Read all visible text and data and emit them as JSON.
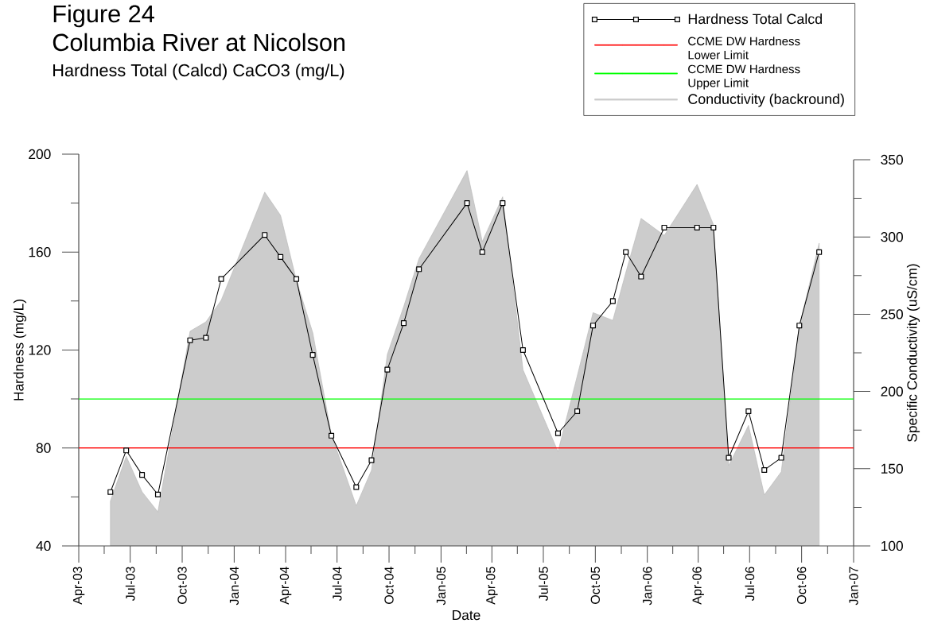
{
  "chart_data": {
    "type": "line",
    "annotations": [
      "Figure 24"
    ],
    "title": "Columbia River at Nicolson",
    "subtitle": "Hardness Total (Calcd) CaCO3 (mg/L)",
    "xlabel": "Date",
    "ylabel": "Hardness (mg/L)",
    "y2label": "Specific Conductivity (uS/cm)",
    "x": [
      "2003-05-27",
      "2003-06-24",
      "2003-07-22",
      "2003-08-19",
      "2003-10-15",
      "2003-11-12",
      "2003-12-09",
      "2004-02-24",
      "2004-03-23",
      "2004-04-20",
      "2004-05-19",
      "2004-06-21",
      "2004-08-04",
      "2004-08-31",
      "2004-09-28",
      "2004-10-27",
      "2004-11-23",
      "2005-02-16",
      "2005-03-15",
      "2005-04-20",
      "2005-05-26",
      "2005-07-27",
      "2005-08-30",
      "2005-09-27",
      "2005-11-01",
      "2005-11-24",
      "2005-12-21",
      "2006-01-31",
      "2006-03-30",
      "2006-04-28",
      "2006-05-25",
      "2006-06-29",
      "2006-07-27",
      "2006-08-26",
      "2006-09-27",
      "2006-11-01"
    ],
    "series": [
      {
        "name": "Hardness Total Calcd",
        "color": "#000000",
        "marker": "square",
        "line_style": "solid",
        "values": [
          62,
          79,
          69,
          61,
          124,
          125,
          149,
          167,
          158,
          149,
          118,
          85,
          64,
          75,
          112,
          131,
          153,
          180,
          160,
          180,
          120,
          86,
          95,
          130,
          140,
          160,
          150,
          170,
          170,
          170,
          76,
          95,
          71,
          76,
          130,
          160
        ]
      },
      {
        "name": "Conductivity (backround)",
        "type": "area",
        "axis": "y2",
        "color": "#cccccc",
        "values": [
          129,
          158,
          135,
          122,
          239,
          245,
          259,
          329,
          314,
          272,
          238,
          172,
          126,
          149,
          224,
          255,
          286,
          343,
          297,
          326,
          214,
          161,
          210,
          251,
          246,
          277,
          312,
          301,
          334,
          308,
          152,
          178,
          133,
          148,
          242,
          296
        ]
      }
    ],
    "ref_lines": [
      {
        "axis": "y",
        "value": 80,
        "label": "CCME DW Hardness Lower Limit",
        "color": "#ff0000"
      },
      {
        "axis": "y",
        "value": 100,
        "label": "CCME DW Hardness Upper Limit",
        "color": "#00ff00"
      }
    ],
    "xlim": [
      "2003-04-01",
      "2007-01-01"
    ],
    "xticks": [
      {
        "value": "2003-04-01",
        "label": "Apr-03"
      },
      {
        "value": "2003-05-16",
        "label": null
      },
      {
        "value": "2003-07-01",
        "label": "Jul-03"
      },
      {
        "value": "2003-08-16",
        "label": null
      },
      {
        "value": "2003-10-01",
        "label": "Oct-03"
      },
      {
        "value": "2003-11-16",
        "label": null
      },
      {
        "value": "2004-01-01",
        "label": "Jan-04"
      },
      {
        "value": "2004-02-15",
        "label": null
      },
      {
        "value": "2004-04-01",
        "label": "Apr-04"
      },
      {
        "value": "2004-05-16",
        "label": null
      },
      {
        "value": "2004-07-01",
        "label": "Jul-04"
      },
      {
        "value": "2004-08-16",
        "label": null
      },
      {
        "value": "2004-10-01",
        "label": "Oct-04"
      },
      {
        "value": "2004-11-16",
        "label": null
      },
      {
        "value": "2005-01-01",
        "label": "Jan-05"
      },
      {
        "value": "2005-02-15",
        "label": null
      },
      {
        "value": "2005-04-01",
        "label": "Apr-05"
      },
      {
        "value": "2005-05-16",
        "label": null
      },
      {
        "value": "2005-07-01",
        "label": "Jul-05"
      },
      {
        "value": "2005-08-16",
        "label": null
      },
      {
        "value": "2005-10-01",
        "label": "Oct-05"
      },
      {
        "value": "2005-11-16",
        "label": null
      },
      {
        "value": "2006-01-01",
        "label": "Jan-06"
      },
      {
        "value": "2006-02-15",
        "label": null
      },
      {
        "value": "2006-04-01",
        "label": "Apr-06"
      },
      {
        "value": "2006-05-16",
        "label": null
      },
      {
        "value": "2006-07-01",
        "label": "Jul-06"
      },
      {
        "value": "2006-08-16",
        "label": null
      },
      {
        "value": "2006-10-01",
        "label": "Oct-06"
      },
      {
        "value": "2006-11-16",
        "label": null
      },
      {
        "value": "2007-01-01",
        "label": "Jan-07"
      }
    ],
    "ylim": [
      40,
      200
    ],
    "yticks": [
      40,
      {
        "value": 60,
        "label": null
      },
      80,
      {
        "value": 100,
        "label": null
      },
      120,
      {
        "value": 140,
        "label": null
      },
      160,
      {
        "value": 180,
        "label": null
      },
      200
    ],
    "y2lim": [
      100,
      350
    ],
    "y2ticks": [
      100,
      {
        "value": 125,
        "label": null
      },
      150,
      {
        "value": 175,
        "label": null
      },
      200,
      {
        "value": 225,
        "label": null
      },
      250,
      {
        "value": 275,
        "label": null
      },
      300,
      {
        "value": 325,
        "label": null
      },
      350
    ],
    "legend": "top right"
  }
}
